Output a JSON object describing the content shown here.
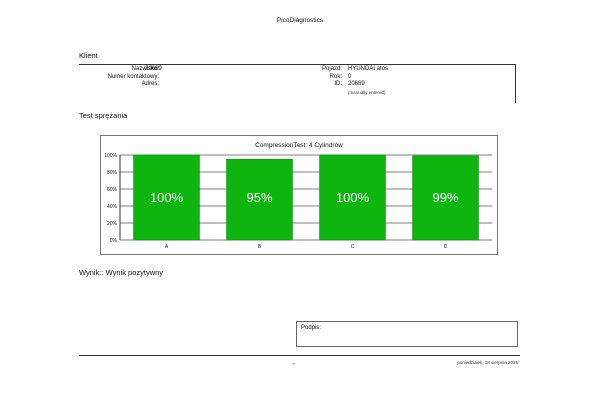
{
  "app": {
    "title": "PicoDiagnostics"
  },
  "client": {
    "section_title": "Klient",
    "fields_left": [
      {
        "label": "Nazwisko:",
        "value": "20669"
      },
      {
        "label": "Numer kontaktowy:",
        "value": ""
      },
      {
        "label": "Adres:",
        "value": ""
      }
    ],
    "fields_right": [
      {
        "label": "Pojazd:",
        "value": "HYUNDAI atos"
      },
      {
        "label": "Rok:",
        "value": "0"
      },
      {
        "label": "ID:",
        "value": "20669"
      }
    ],
    "id_note": "(manually entered)"
  },
  "test": {
    "section_title": "Test sprężania"
  },
  "chart_data": {
    "type": "bar",
    "title": "CompressionTest: 4 Cylindrów",
    "categories": [
      "A",
      "B",
      "C",
      "D"
    ],
    "values": [
      100,
      95,
      100,
      99
    ],
    "value_labels": [
      "100%",
      "95%",
      "100%",
      "99%"
    ],
    "ylim": [
      0,
      100
    ],
    "yticks": [
      "0%",
      "20%",
      "40%",
      "60%",
      "80%",
      "100%"
    ],
    "grid": true,
    "bar_color": "#0fb50f",
    "label_color": "#ffffff"
  },
  "result": {
    "text": "Wynik:: Wynik pozytywny"
  },
  "signature": {
    "label": "Podpis:"
  },
  "footer": {
    "center_mark": "-",
    "date": "poniedziałek, 18 sierpnia 2025"
  }
}
